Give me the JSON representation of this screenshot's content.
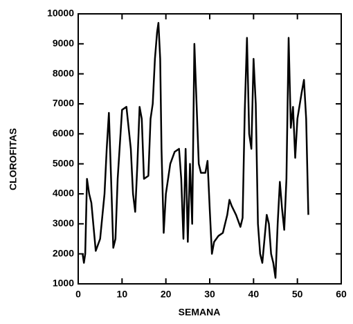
{
  "chart_data": {
    "type": "line",
    "xlabel": "SEMANA",
    "ylabel": "CLOROFITAS",
    "x": [
      1,
      1.3,
      1.6,
      2,
      2.5,
      3,
      4,
      5,
      6,
      6.5,
      7,
      7.5,
      8,
      8.5,
      9,
      10,
      11,
      12,
      12.5,
      13,
      13.5,
      14,
      14.5,
      15,
      16,
      16.5,
      17,
      17.5,
      18,
      18.3,
      18.7,
      19,
      19.5,
      20,
      21,
      22,
      23,
      23.5,
      24,
      24.5,
      25,
      25.5,
      26,
      26.5,
      27,
      27.5,
      28,
      29,
      29.5,
      30,
      30.5,
      31,
      32,
      33,
      34,
      34.5,
      35,
      36,
      37,
      37.5,
      38,
      38.5,
      39,
      39.5,
      40,
      40.5,
      41,
      41.5,
      42,
      42.5,
      43,
      43.5,
      44,
      44.5,
      45,
      45.5,
      46,
      46.5,
      47,
      47.5,
      48,
      48.5,
      49,
      49.5,
      50,
      51,
      51.5,
      52,
      52.5
    ],
    "series": [
      {
        "color": "#000000",
        "values": [
          2000,
          1700,
          2000,
          4500,
          4000,
          3700,
          2100,
          2500,
          4000,
          5500,
          6700,
          4500,
          2200,
          2500,
          4500,
          6800,
          6900,
          5500,
          4000,
          3400,
          5000,
          6900,
          6500,
          4500,
          4600,
          6500,
          7000,
          8500,
          9400,
          9700,
          8500,
          5500,
          2700,
          4000,
          5000,
          5400,
          5500,
          4500,
          2500,
          5500,
          2400,
          5000,
          3000,
          9000,
          7000,
          5000,
          4700,
          4700,
          5100,
          3500,
          2000,
          2400,
          2600,
          2700,
          3300,
          3800,
          3600,
          3300,
          2900,
          3200,
          6800,
          9200,
          6000,
          5500,
          8500,
          7000,
          3000,
          2000,
          1700,
          2500,
          3300,
          3000,
          2000,
          1700,
          1200,
          3000,
          4400,
          3500,
          2800,
          4500,
          9200,
          6200,
          6900,
          5200,
          6500,
          7400,
          7800,
          6500,
          3300
        ]
      }
    ],
    "xlim": [
      0,
      60
    ],
    "xticks": [
      0,
      10,
      20,
      30,
      40,
      50,
      60
    ],
    "ylim": [
      1000,
      10000
    ],
    "yticks": [
      1000,
      2000,
      3000,
      4000,
      5000,
      6000,
      7000,
      8000,
      9000,
      10000
    ]
  }
}
